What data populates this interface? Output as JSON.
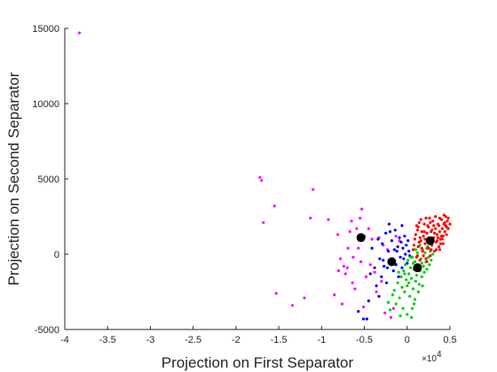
{
  "chart_data": {
    "type": "scatter",
    "xlabel": "Projection on First Separator",
    "ylabel": "Projection on Second Separator",
    "x_multiplier_base": "×10",
    "x_multiplier_exponent": "4",
    "xlim": [
      -40000,
      5000
    ],
    "ylim": [
      -5000,
      15000
    ],
    "xticks": [
      -40000,
      -35000,
      -30000,
      -25000,
      -20000,
      -15000,
      -10000,
      -5000,
      0,
      5000
    ],
    "xtick_labels": [
      "-4",
      "-3.5",
      "-3",
      "-2.5",
      "-2",
      "-1.5",
      "-1",
      "-0.5",
      "0",
      "0.5"
    ],
    "yticks": [
      -5000,
      0,
      5000,
      10000,
      15000
    ],
    "ytick_labels": [
      "-5000",
      "0",
      "5000",
      "10000",
      "15000"
    ],
    "grid": false,
    "series": [
      {
        "color": "#ff00ff",
        "points": [
          [
            -38300,
            14700
          ],
          [
            -17200,
            5100
          ],
          [
            -17000,
            4900
          ],
          [
            -16800,
            2100
          ],
          [
            -15500,
            3200
          ],
          [
            -15300,
            -2600
          ],
          [
            -13400,
            -3400
          ],
          [
            -12000,
            -2900
          ],
          [
            -11000,
            4300
          ],
          [
            -11300,
            2400
          ],
          [
            -9200,
            2300
          ],
          [
            -8500,
            -2700
          ],
          [
            -8100,
            1300
          ],
          [
            -8000,
            -1100
          ],
          [
            -7800,
            -300
          ],
          [
            -7600,
            -3300
          ],
          [
            -7400,
            -800
          ],
          [
            -7200,
            -1300
          ],
          [
            -7000,
            -900
          ],
          [
            -6900,
            400
          ],
          [
            -6700,
            1500
          ],
          [
            -6500,
            2200
          ],
          [
            -6400,
            -1900
          ],
          [
            -6300,
            -200
          ],
          [
            -6100,
            -2300
          ],
          [
            -5900,
            1700
          ],
          [
            -5700,
            400
          ],
          [
            -5500,
            2400
          ],
          [
            -5400,
            -500
          ],
          [
            -5300,
            3000
          ],
          [
            -5100,
            -3500
          ],
          [
            -5000,
            1200
          ],
          [
            -4800,
            -1500
          ],
          [
            -4500,
            1700
          ],
          [
            -4300,
            -700
          ],
          [
            -4100,
            1000
          ],
          [
            -3800,
            -1200
          ],
          [
            -3600,
            -2500
          ],
          [
            -3300,
            1100
          ],
          [
            -3000,
            -1800
          ],
          [
            -2800,
            600
          ],
          [
            -2600,
            -3900
          ],
          [
            -2300,
            300
          ],
          [
            -1900,
            -4200
          ],
          [
            -1600,
            -3600
          ],
          [
            -1300,
            1200
          ],
          [
            -900,
            900
          ]
        ]
      },
      {
        "color": "#0000ff",
        "points": [
          [
            -5700,
            -3800
          ],
          [
            -5100,
            -4300
          ],
          [
            -4500,
            -3100
          ],
          [
            -4300,
            -1300
          ],
          [
            -4100,
            400
          ],
          [
            -3800,
            -900
          ],
          [
            -3600,
            -2100
          ],
          [
            -3400,
            1000
          ],
          [
            -3200,
            -300
          ],
          [
            -3000,
            -1500
          ],
          [
            -2900,
            700
          ],
          [
            -2700,
            -800
          ],
          [
            -2500,
            1400
          ],
          [
            -2400,
            -1900
          ],
          [
            -2200,
            200
          ],
          [
            -2100,
            2000
          ],
          [
            -1900,
            -400
          ],
          [
            -1800,
            900
          ],
          [
            -1600,
            -1100
          ],
          [
            -1500,
            300
          ],
          [
            -1400,
            1600
          ],
          [
            -1300,
            -700
          ],
          [
            -1100,
            500
          ],
          [
            -1000,
            -1500
          ],
          [
            -900,
            1100
          ],
          [
            -800,
            -200
          ],
          [
            -700,
            800
          ],
          [
            -600,
            -900
          ],
          [
            -500,
            400
          ],
          [
            -400,
            -300
          ],
          [
            -300,
            1200
          ],
          [
            -200,
            0
          ],
          [
            -100,
            600
          ],
          [
            0,
            -600
          ],
          [
            100,
            900
          ],
          [
            200,
            200
          ],
          [
            300,
            -100
          ],
          [
            -2300,
            -900
          ],
          [
            -1700,
            -300
          ],
          [
            -1200,
            200
          ],
          [
            -2800,
            -400
          ],
          [
            -4700,
            -4300
          ],
          [
            -3300,
            -2800
          ],
          [
            -2000,
            1500
          ],
          [
            -600,
            1900
          ]
        ]
      },
      {
        "color": "#00cc00",
        "points": [
          [
            -2200,
            -3200
          ],
          [
            -2000,
            -3700
          ],
          [
            -1700,
            -2700
          ],
          [
            -1500,
            -2400
          ],
          [
            -1300,
            -3300
          ],
          [
            -1100,
            -1900
          ],
          [
            -900,
            -2900
          ],
          [
            -700,
            -1500
          ],
          [
            -600,
            -2200
          ],
          [
            -500,
            -3600
          ],
          [
            -400,
            -1100
          ],
          [
            -300,
            -2500
          ],
          [
            -200,
            -700
          ],
          [
            -100,
            -1700
          ],
          [
            0,
            -2100
          ],
          [
            100,
            -400
          ],
          [
            200,
            -1300
          ],
          [
            300,
            -2800
          ],
          [
            400,
            -900
          ],
          [
            500,
            -1600
          ],
          [
            600,
            -200
          ],
          [
            700,
            -2300
          ],
          [
            800,
            -1000
          ],
          [
            900,
            -500
          ],
          [
            1000,
            -1800
          ],
          [
            1100,
            -1400
          ],
          [
            1200,
            100
          ],
          [
            1300,
            -700
          ],
          [
            1400,
            -2000
          ],
          [
            1500,
            -1100
          ],
          [
            1600,
            -300
          ],
          [
            1700,
            -1500
          ],
          [
            1800,
            300
          ],
          [
            1900,
            -800
          ],
          [
            2000,
            -1200
          ],
          [
            2100,
            100
          ],
          [
            2200,
            -500
          ],
          [
            2300,
            -1000
          ],
          [
            2400,
            500
          ],
          [
            2500,
            -200
          ],
          [
            2600,
            -700
          ],
          [
            2700,
            200
          ],
          [
            2800,
            -400
          ],
          [
            3000,
            0
          ],
          [
            -800,
            -4100
          ],
          [
            600,
            -3600
          ],
          [
            900,
            -3000
          ],
          [
            1300,
            -2500
          ],
          [
            1800,
            -2100
          ],
          [
            400,
            -200
          ],
          [
            700,
            -600
          ],
          [
            1000,
            300
          ],
          [
            1500,
            600
          ],
          [
            -300,
            -1300
          ],
          [
            200,
            -1900
          ],
          [
            1100,
            -900
          ],
          [
            1700,
            -600
          ],
          [
            2300,
            400
          ],
          [
            -1000,
            -1200
          ],
          [
            800,
            -3300
          ],
          [
            0,
            -4000
          ],
          [
            500,
            -4200
          ]
        ]
      },
      {
        "color": "#ff0000",
        "points": [
          [
            700,
            300
          ],
          [
            900,
            1000
          ],
          [
            1100,
            -200
          ],
          [
            1200,
            1600
          ],
          [
            1300,
            500
          ],
          [
            1400,
            2100
          ],
          [
            1500,
            -400
          ],
          [
            1600,
            900
          ],
          [
            1700,
            1500
          ],
          [
            1800,
            200
          ],
          [
            1900,
            1200
          ],
          [
            2000,
            2000
          ],
          [
            2100,
            700
          ],
          [
            2200,
            -300
          ],
          [
            2300,
            1400
          ],
          [
            2400,
            400
          ],
          [
            2500,
            1800
          ],
          [
            2600,
            1000
          ],
          [
            2700,
            -100
          ],
          [
            2800,
            1500
          ],
          [
            2900,
            600
          ],
          [
            3000,
            2200
          ],
          [
            3100,
            1100
          ],
          [
            3200,
            200
          ],
          [
            3300,
            1700
          ],
          [
            3400,
            800
          ],
          [
            3500,
            1300
          ],
          [
            3600,
            2000
          ],
          [
            3700,
            500
          ],
          [
            3800,
            1500
          ],
          [
            3900,
            1000
          ],
          [
            4000,
            2300
          ],
          [
            4100,
            1700
          ],
          [
            4200,
            1200
          ],
          [
            4300,
            2000
          ],
          [
            4400,
            1500
          ],
          [
            4500,
            2500
          ],
          [
            4600,
            1800
          ],
          [
            4700,
            2200
          ],
          [
            4800,
            2400
          ],
          [
            5000,
            2000
          ],
          [
            1000,
            1300
          ],
          [
            1600,
            2300
          ],
          [
            2200,
            2400
          ],
          [
            2700,
            2100
          ],
          [
            3300,
            2500
          ],
          [
            3800,
            2400
          ],
          [
            4300,
            2600
          ],
          [
            1900,
            -100
          ],
          [
            2500,
            400
          ],
          [
            3000,
            800
          ],
          [
            3500,
            900
          ],
          [
            4000,
            1200
          ],
          [
            1400,
            800
          ],
          [
            2100,
            1000
          ],
          [
            2900,
            1600
          ],
          [
            3700,
            1900
          ],
          [
            4200,
            700
          ],
          [
            1700,
            400
          ],
          [
            3100,
            1900
          ],
          [
            2300,
            -500
          ],
          [
            2800,
            300
          ],
          [
            3400,
            300
          ],
          [
            4600,
            1300
          ],
          [
            1300,
            1800
          ],
          [
            4800,
            1700
          ],
          [
            1200,
            -100
          ],
          [
            3600,
            1100
          ],
          [
            2600,
            2400
          ],
          [
            4400,
            2100
          ],
          [
            2000,
            1500
          ],
          [
            3200,
            1400
          ],
          [
            3900,
            700
          ],
          [
            1500,
            1100
          ],
          [
            2400,
            1900
          ],
          [
            4100,
            1000
          ],
          [
            800,
            600
          ],
          [
            1100,
            1900
          ],
          [
            4500,
            1900
          ],
          [
            3800,
            300
          ]
        ]
      }
    ],
    "centroids": {
      "color": "#000000",
      "points": [
        [
          -5400,
          1100
        ],
        [
          -1800,
          -500
        ],
        [
          1200,
          -900
        ],
        [
          2700,
          900
        ]
      ]
    }
  }
}
